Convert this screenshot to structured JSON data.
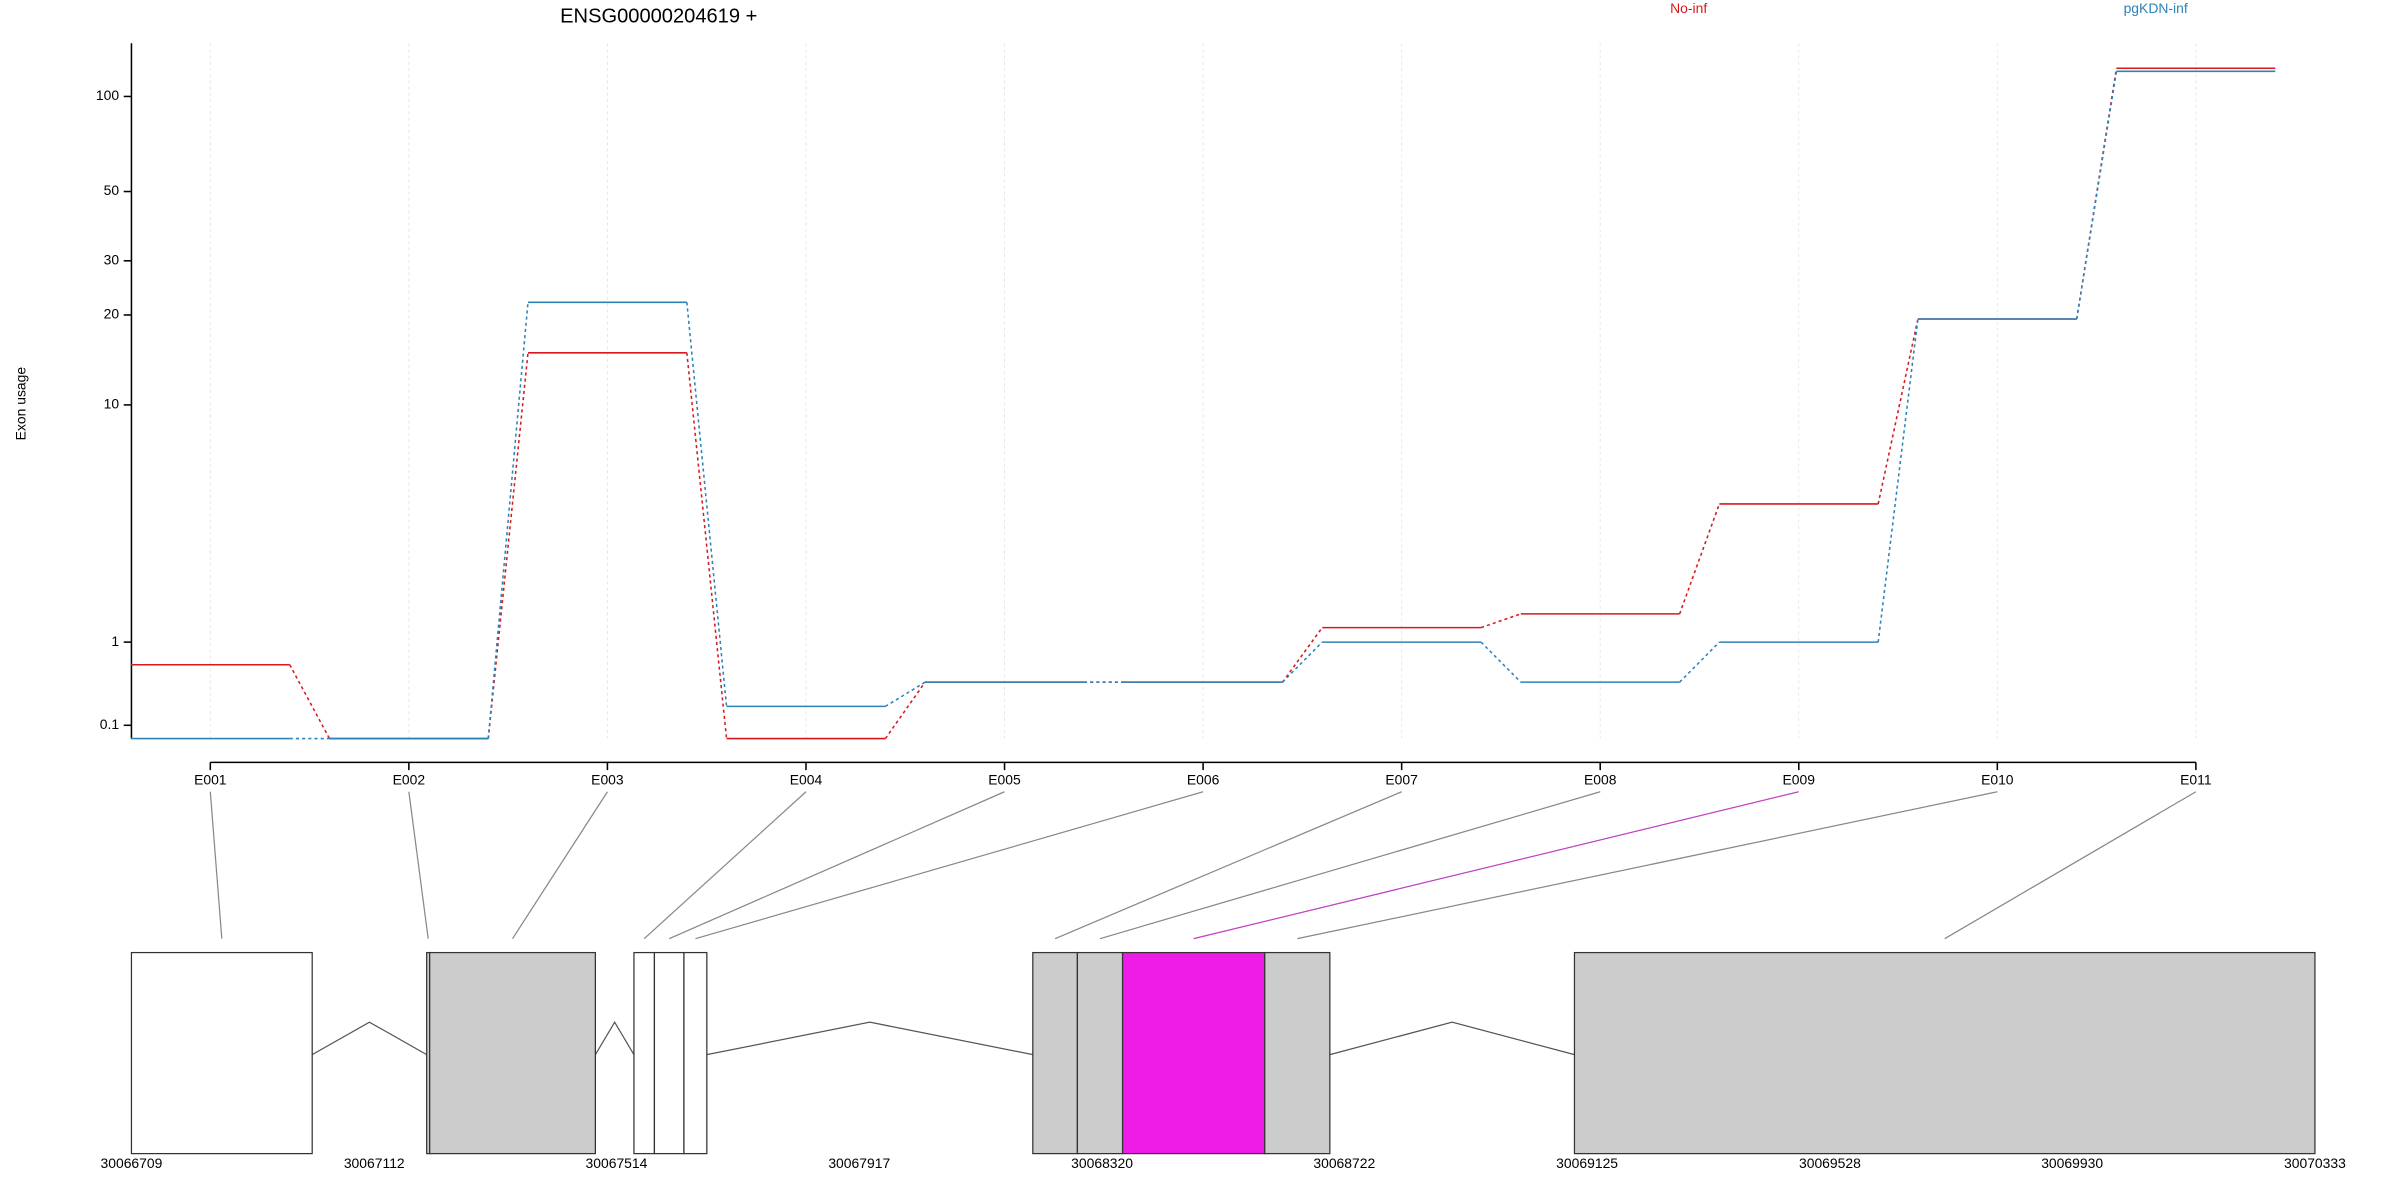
{
  "chart_data": {
    "type": "line",
    "title": "ENSG00000204619 +",
    "y_label": "Exon usage",
    "y_scale": "log1p",
    "ylim": [
      0,
      147
    ],
    "yticks": [
      0.1,
      1,
      10,
      20,
      30,
      50,
      100
    ],
    "grid": true,
    "categories": [
      "E001",
      "E002",
      "E003",
      "E004",
      "E005",
      "E006",
      "E007",
      "E008",
      "E009",
      "E010",
      "E011"
    ],
    "series": [
      {
        "name": "No-inf",
        "color": "#d7191c",
        "values": [
          0.7,
          0,
          15,
          0,
          0.5,
          0.5,
          1.22,
          1.45,
          4.4,
          19.4,
          122.7
        ]
      },
      {
        "name": "pgKDN-inf",
        "color": "#2b83ba",
        "values": [
          0,
          0,
          22,
          0.26,
          0.5,
          0.5,
          1,
          0.5,
          1,
          19.4,
          120
        ]
      }
    ],
    "gene_model": {
      "xlim": [
        30066709,
        30070333
      ],
      "xticks": [
        30066709,
        30067112,
        30067514,
        30067917,
        30068320,
        30068722,
        30069125,
        30069528,
        30069930,
        30070333
      ],
      "exons": [
        {
          "start": 30066709,
          "end": 30067009,
          "color": "#ffffff"
        },
        {
          "start": 30067199,
          "end": 30067204,
          "color": "#cccccc"
        },
        {
          "start": 30067204,
          "end": 30067479,
          "color": "#cccccc"
        },
        {
          "start": 30067543,
          "end": 30067577,
          "color": "#ffffff"
        },
        {
          "start": 30067577,
          "end": 30067626,
          "color": "#ffffff"
        },
        {
          "start": 30067626,
          "end": 30067664,
          "color": "#ffffff"
        },
        {
          "start": 30068205,
          "end": 30068279,
          "color": "#cccccc"
        },
        {
          "start": 30068279,
          "end": 30068354,
          "color": "#cccccc"
        },
        {
          "start": 30068354,
          "end": 30068590,
          "color": "#ee1ce6"
        },
        {
          "start": 30068590,
          "end": 30068698,
          "color": "#cccccc"
        },
        {
          "start": 30069104,
          "end": 30070333,
          "color": "#cccccc"
        }
      ]
    }
  }
}
